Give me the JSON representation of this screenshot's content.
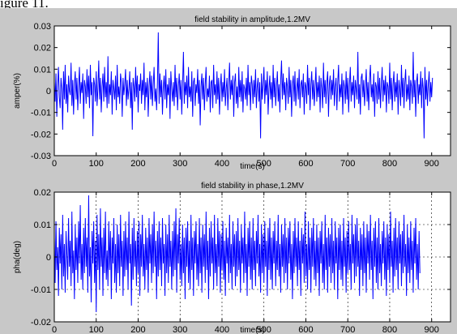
{
  "caption": "igure 11.",
  "chart_data": [
    {
      "type": "line",
      "title": "field stability in amplitude,1.2MV",
      "xlabel": "time(s)",
      "ylabel": "amper(%)",
      "xlim": [
        0,
        945
      ],
      "ylim": [
        -0.03,
        0.03
      ],
      "xticks": [
        0,
        100,
        200,
        300,
        400,
        500,
        600,
        700,
        800,
        900
      ],
      "yticks": [
        -0.03,
        -0.02,
        -0.01,
        0,
        0.01,
        0.02,
        0.03
      ],
      "ytick_labels": [
        "-0.03",
        "-0.02",
        "-0.01",
        "0",
        "0.01",
        "0.02",
        "0.03"
      ],
      "grid": false,
      "color": "#0000ff",
      "series": [
        {
          "x_start": 0,
          "x_step": 2,
          "values": [
            0.004,
            -0.005,
            0.008,
            -0.012,
            0.002,
            0.011,
            -0.003,
            -0.008,
            0.006,
            0.001,
            -0.018,
            0.009,
            -0.004,
            0.012,
            -0.006,
            0.003,
            -0.01,
            0.007,
            0.0,
            -0.002,
            0.013,
            -0.007,
            0.005,
            -0.011,
            0.003,
            0.009,
            -0.004,
            0.006,
            -0.009,
            0.002,
            0.011,
            -0.006,
            0.004,
            -0.001,
            0.008,
            -0.013,
            0.005,
            0.002,
            -0.006,
            0.01,
            -0.003,
            0.007,
            -0.008,
            0.012,
            -0.002,
            0.004,
            -0.021,
            0.006,
            0.003,
            -0.005,
            0.009,
            -0.007,
            0.001,
            0.014,
            -0.004,
            0.006,
            -0.01,
            0.002,
            0.008,
            -0.005,
            0.011,
            -0.003,
            0.004,
            -0.008,
            0.016,
            -0.006,
            0.003,
            -0.002,
            0.009,
            -0.011,
            0.005,
            0.001,
            -0.004,
            0.007,
            -0.009,
            0.012,
            -0.003,
            0.002,
            -0.006,
            0.008,
            0.004,
            -0.012,
            0.006,
            -0.002,
            0.003,
            0.01,
            -0.007,
            0.005,
            -0.004,
            0.001,
            0.009,
            -0.008,
            0.004,
            -0.018,
            0.006,
            0.002,
            -0.005,
            0.011,
            -0.003,
            0.007,
            -0.01,
            0.003,
            0.0,
            0.008,
            -0.006,
            0.005,
            -0.002,
            0.013,
            -0.009,
            0.004,
            -0.003,
            0.006,
            -0.012,
            0.002,
            0.009,
            -0.004,
            0.007,
            -0.007,
            0.003,
            0.011,
            -0.005,
            0.001,
            -0.009,
            0.004,
            0.027,
            -0.006,
            0.008,
            -0.003,
            0.005,
            -0.011,
            0.002,
            0.007,
            -0.004,
            0.01,
            -0.008,
            0.003,
            -0.002,
            0.006,
            -0.013,
            0.009,
            0.001,
            -0.005,
            0.004,
            -0.007,
            0.012,
            -0.003,
            0.006,
            -0.009,
            0.002,
            0.008,
            -0.004,
            0.005,
            -0.011,
            0.003,
            0.018,
            -0.006,
            0.004,
            -0.002,
            0.007,
            -0.008,
            0.011,
            -0.003,
            0.002,
            -0.005,
            0.009,
            -0.012,
            0.004,
            0.006,
            -0.007,
            0.003,
            -0.001,
            0.01,
            -0.006,
            0.005,
            -0.016,
            0.002,
            0.008,
            -0.004,
            0.006,
            -0.009,
            0.003,
            0.011,
            -0.005,
            0.001,
            -0.003,
            0.007,
            -0.01,
            0.004,
            0.005,
            -0.008,
            0.012,
            -0.002,
            0.003,
            -0.006,
            0.009,
            -0.004,
            0.006,
            -0.011,
            0.002,
            0.008,
            -0.005,
            0.004,
            -0.003,
            0.01,
            -0.007,
            0.001,
            0.006,
            -0.009,
            0.003,
            0.013,
            -0.004,
            0.005,
            -0.002,
            0.007,
            -0.012,
            0.004,
            0.008,
            -0.006,
            0.002,
            -0.008,
            0.011,
            -0.003,
            0.005,
            -0.005,
            0.009,
            -0.01,
            0.003,
            0.001,
            -0.004,
            0.006,
            -0.007,
            0.012,
            -0.002,
            0.004,
            -0.009,
            0.007,
            0.003,
            -0.006,
            0.005,
            -0.003,
            0.01,
            -0.008,
            0.002,
            0.006,
            -0.005,
            0.004,
            -0.022,
            0.008,
            -0.004,
            0.003,
            0.011,
            -0.006,
            0.005,
            -0.002,
            0.009,
            -0.011,
            0.001,
            0.007,
            -0.004,
            0.004,
            -0.008,
            0.012,
            -0.003,
            0.006,
            -0.007,
            0.002,
            0.009,
            -0.005,
            0.003,
            -0.01,
            0.005,
            0.014,
            -0.004,
            0.008,
            -0.002,
            0.004,
            -0.009,
            0.006,
            0.002,
            -0.006,
            0.011,
            -0.003,
            0.005,
            -0.012,
            0.003,
            0.007,
            -0.005,
            0.009,
            -0.007,
            0.001,
            0.006,
            -0.004,
            0.01,
            -0.008,
            0.003,
            0.005,
            -0.003,
            0.008,
            -0.011,
            0.004,
            0.002,
            -0.006,
            0.012,
            -0.002,
            0.006,
            -0.009,
            0.003,
            0.009,
            -0.004,
            0.005,
            -0.007,
            0.002,
            0.011,
            -0.005,
            0.004,
            -0.003,
            0.007,
            -0.01,
            0.006,
            0.001,
            -0.008,
            0.013,
            -0.003,
            0.005,
            -0.006,
            0.004,
            0.009,
            -0.012,
            0.003,
            0.007,
            -0.004,
            0.005,
            -0.002,
            0.01,
            -0.007,
            0.002,
            0.006,
            -0.009,
            0.004,
            0.012,
            -0.005,
            0.003,
            -0.003,
            0.008,
            -0.011,
            0.005,
            0.002,
            -0.006,
            0.009,
            -0.004,
            0.006,
            -0.01,
            0.003,
            0.011,
            -0.005,
            0.004,
            -0.002,
            0.007,
            -0.008,
            0.005,
            0.001,
            -0.004,
            0.018,
            -0.006,
            0.003,
            -0.011,
            0.006,
            0.008,
            -0.003,
            0.005,
            -0.007,
            0.002,
            0.01,
            -0.005,
            0.004,
            -0.009,
            0.006,
            0.012,
            -0.003,
            0.003,
            -0.005,
            0.008,
            -0.012,
            0.004,
            0.002,
            -0.006,
            0.009,
            -0.004,
            0.006,
            -0.008,
            0.003,
            0.011,
            -0.005,
            0.005,
            -0.002,
            0.007,
            -0.01,
            0.004,
            0.002,
            -0.006,
            0.013,
            -0.004,
            0.006,
            -0.009,
            0.003,
            0.009,
            -0.005,
            0.004,
            -0.003,
            0.008,
            -0.011,
            0.005,
            0.001,
            -0.007,
            0.012,
            -0.003,
            0.006,
            -0.008,
            0.004,
            0.01,
            -0.005,
            0.003,
            -0.004,
            0.007,
            -0.009,
            0.005,
            0.002,
            -0.006,
            0.018,
            -0.003,
            0.005,
            -0.012,
            0.004,
            0.008,
            -0.006,
            0.003,
            -0.002,
            0.009,
            -0.008,
            0.006,
            0.001,
            -0.022,
            0.011,
            -0.004,
            0.005,
            -0.007,
            0.003,
            0.009,
            -0.005,
            0.004,
            -0.003,
            0.006
          ]
        }
      ]
    },
    {
      "type": "line",
      "title": "field stability in phase,1.2MV",
      "xlabel": "time(s)",
      "ylabel": "pha(deg)",
      "xlim": [
        0,
        945
      ],
      "ylim": [
        -0.02,
        0.02
      ],
      "xticks": [
        0,
        100,
        200,
        300,
        400,
        500,
        600,
        700,
        800,
        900
      ],
      "yticks": [
        -0.02,
        -0.01,
        0,
        0.01,
        0.02
      ],
      "ytick_labels": [
        "-0.02",
        "-0.01",
        "0",
        "0.01",
        "0.02"
      ],
      "grid": true,
      "color": "#0000ff",
      "series": [
        {
          "x_start": 0,
          "x_step": 2,
          "values": [
            0.006,
            -0.008,
            0.011,
            -0.004,
            0.003,
            -0.012,
            0.009,
            -0.002,
            0.007,
            -0.01,
            0.013,
            -0.006,
            0.004,
            -0.011,
            0.008,
            0.001,
            -0.007,
            0.012,
            -0.003,
            0.005,
            -0.009,
            0.014,
            -0.005,
            0.002,
            -0.013,
            0.01,
            -0.004,
            0.006,
            -0.008,
            0.011,
            -0.002,
            0.016,
            -0.007,
            0.004,
            -0.01,
            0.009,
            -0.005,
            0.012,
            -0.003,
            0.006,
            -0.011,
            0.019,
            -0.006,
            0.003,
            -0.014,
            0.008,
            -0.002,
            0.011,
            -0.008,
            0.005,
            -0.017,
            0.013,
            -0.004,
            0.007,
            -0.01,
            0.015,
            -0.003,
            0.006,
            -0.012,
            0.009,
            -0.005,
            0.014,
            -0.007,
            0.002,
            -0.009,
            0.011,
            -0.004,
            0.008,
            -0.013,
            0.006,
            -0.002,
            0.012,
            -0.008,
            0.004,
            -0.011,
            0.01,
            -0.005,
            0.007,
            -0.009,
            0.013,
            -0.003,
            0.005,
            -0.012,
            0.008,
            -0.006,
            0.011,
            -0.004,
            0.006,
            -0.01,
            0.014,
            -0.002,
            0.004,
            -0.015,
            0.009,
            -0.007,
            0.012,
            -0.003,
            0.005,
            -0.009,
            0.008,
            -0.005,
            0.011,
            -0.012,
            0.007,
            -0.003,
            0.013,
            -0.006,
            0.004,
            -0.01,
            0.009,
            -0.004,
            0.006,
            -0.011,
            0.012,
            -0.002,
            0.007,
            -0.008,
            0.01,
            -0.005,
            0.014,
            -0.003,
            0.005,
            -0.013,
            0.008,
            -0.006,
            0.011,
            -0.004,
            0.006,
            -0.009,
            0.012,
            -0.002,
            0.004,
            -0.012,
            0.01,
            -0.005,
            0.007,
            -0.008,
            0.013,
            -0.003,
            0.005,
            -0.01,
            0.008,
            -0.006,
            0.011,
            -0.004,
            0.015,
            -0.011,
            0.007,
            -0.002,
            0.012,
            -0.007,
            0.004,
            -0.009,
            0.01,
            -0.005,
            0.006,
            -0.013,
            0.009,
            -0.003,
            0.011,
            -0.008,
            0.005,
            -0.01,
            0.013,
            -0.004,
            0.006,
            -0.012,
            0.008,
            -0.002,
            0.011,
            -0.007,
            0.004,
            -0.009,
            0.012,
            -0.005,
            0.006,
            -0.011,
            0.01,
            -0.003,
            0.007,
            -0.008,
            0.014,
            -0.004,
            0.005,
            -0.013,
            0.009,
            -0.006,
            0.011,
            -0.002,
            0.006,
            -0.01,
            0.013,
            -0.005,
            0.004,
            -0.009,
            0.012,
            -0.003,
            0.008,
            -0.011,
            0.007,
            -0.004,
            0.011,
            -0.007,
            0.005,
            -0.012,
            0.009,
            -0.002,
            0.006,
            -0.008,
            0.013,
            -0.005,
            0.004,
            -0.01,
            0.011,
            -0.003,
            0.007,
            -0.009,
            0.008,
            -0.006,
            0.012,
            -0.004,
            0.005,
            -0.011,
            0.01,
            -0.002,
            0.006,
            -0.008,
            0.014,
            -0.005,
            0.004,
            -0.012,
            0.009,
            -0.003,
            0.011,
            -0.007,
            0.006,
            -0.01,
            0.012,
            -0.004,
            0.005,
            -0.009,
            0.008,
            -0.002,
            0.013,
            -0.006,
            0.004,
            -0.011,
            0.01,
            -0.005,
            0.007,
            -0.008,
            0.011,
            -0.003,
            0.005,
            -0.012,
            0.009,
            -0.004,
            0.012,
            -0.007,
            0.006,
            -0.01,
            0.008,
            -0.002,
            0.011,
            -0.009,
            0.005,
            -0.004,
            0.013,
            -0.006,
            0.004,
            -0.011,
            0.01,
            -0.003,
            0.007,
            -0.008,
            0.012,
            -0.005,
            0.006,
            -0.01,
            0.009,
            -0.002,
            0.011,
            -0.007,
            0.004,
            -0.013,
            0.008,
            -0.005,
            0.012,
            -0.003,
            0.006,
            -0.009,
            0.011,
            -0.004,
            0.005,
            -0.012,
            0.009,
            -0.002,
            0.007,
            -0.008,
            0.014,
            -0.006,
            0.004,
            -0.01,
            0.011,
            -0.004,
            0.006,
            -0.011,
            0.009,
            -0.003,
            0.012,
            -0.007,
            0.005,
            -0.009,
            0.01,
            -0.005,
            0.006,
            -0.012,
            0.008,
            -0.002,
            0.011,
            -0.008,
            0.004,
            -0.01,
            0.013,
            -0.004,
            0.006,
            -0.011,
            0.009,
            -0.003,
            0.007,
            -0.008,
            0.012,
            -0.005,
            0.005,
            -0.01,
            0.011,
            -0.002,
            0.006,
            -0.013,
            0.009,
            -0.004,
            0.01,
            -0.007,
            0.005,
            -0.009,
            0.012,
            -0.003,
            0.006,
            -0.011,
            0.008,
            -0.005,
            0.011,
            -0.004,
            0.004,
            -0.01,
            0.013,
            -0.002,
            0.007,
            -0.008,
            0.01,
            -0.006,
            0.012,
            -0.003,
            0.005,
            -0.012,
            0.009,
            -0.004,
            0.007,
            -0.009,
            0.011,
            -0.005,
            0.006,
            -0.011,
            0.01,
            -0.002,
            0.008,
            -0.007,
            0.013,
            -0.004,
            0.005,
            -0.013,
            0.009,
            -0.003,
            0.011,
            -0.008,
            0.006,
            -0.01,
            0.012,
            -0.005,
            0.004,
            -0.009,
            0.008,
            -0.002,
            0.011,
            -0.007,
            0.006,
            -0.012,
            0.01,
            -0.004,
            0.007,
            -0.008,
            0.014,
            -0.003,
            0.005,
            -0.011,
            0.009,
            -0.006,
            0.012,
            -0.004,
            0.006,
            -0.01,
            0.011,
            -0.002,
            0.007,
            -0.009,
            0.008,
            -0.005,
            0.013,
            -0.003,
            0.004,
            -0.012,
            0.01,
            -0.005,
            0.006,
            -0.008,
            0.011,
            -0.004,
            0.005,
            -0.011,
            0.009,
            -0.002,
            0.012,
            -0.007,
            0.004,
            -0.01,
            0.008,
            -0.005
          ]
        }
      ]
    }
  ]
}
